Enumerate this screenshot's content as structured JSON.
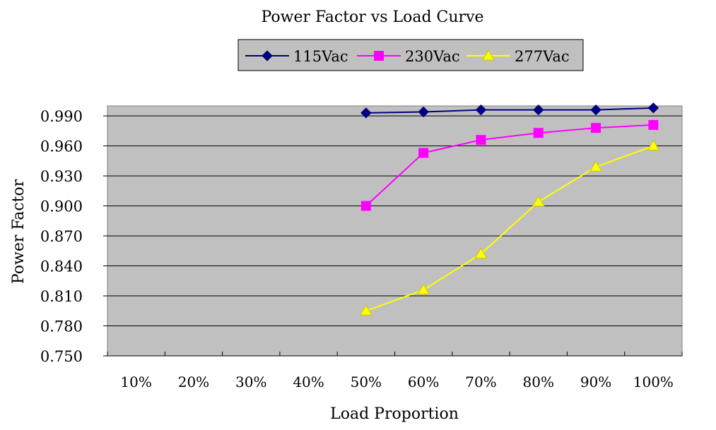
{
  "chart_data": {
    "type": "line",
    "title": "Power Factor vs Load Curve",
    "xlabel": "Load Proportion",
    "ylabel": "Power Factor",
    "categories": [
      "10%",
      "20%",
      "30%",
      "40%",
      "50%",
      "60%",
      "70%",
      "80%",
      "90%",
      "100%"
    ],
    "y_ticks": [
      "0.750",
      "0.780",
      "0.810",
      "0.840",
      "0.870",
      "0.900",
      "0.930",
      "0.960",
      "0.990"
    ],
    "ylim": [
      0.75,
      1.0
    ],
    "grid": true,
    "plot_background": "#c0c0c0",
    "legend_position": "top",
    "series": [
      {
        "name": "115Vac",
        "color": "#000080",
        "marker": "diamond",
        "values": [
          null,
          null,
          null,
          null,
          0.993,
          0.994,
          0.996,
          0.996,
          0.996,
          0.998
        ]
      },
      {
        "name": "230Vac",
        "color": "#ff00ff",
        "marker": "square",
        "values": [
          null,
          null,
          null,
          null,
          0.9,
          0.953,
          0.966,
          0.973,
          0.978,
          0.981
        ]
      },
      {
        "name": "277Vac",
        "color": "#ffff00",
        "marker": "triangle",
        "values": [
          null,
          null,
          null,
          null,
          0.795,
          0.816,
          0.852,
          0.904,
          0.939,
          0.96
        ]
      }
    ]
  }
}
